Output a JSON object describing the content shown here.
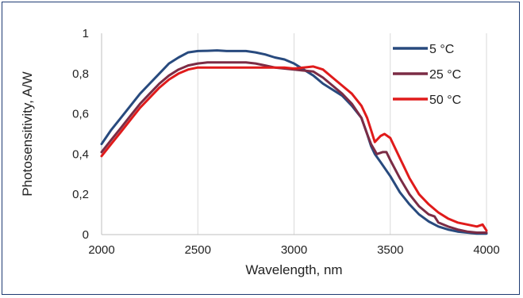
{
  "chart_data": {
    "type": "line",
    "title": "",
    "xlabel": "Wavelength, nm",
    "ylabel": "Photosensitivity, A/W",
    "xlim": [
      2000,
      4000
    ],
    "ylim": [
      0,
      1
    ],
    "x_ticks": [
      2000,
      2500,
      3000,
      3500,
      4000
    ],
    "y_ticks": [
      0,
      0.2,
      0.4,
      0.6,
      0.8,
      1
    ],
    "y_tick_labels": [
      "0",
      "0,2",
      "0,4",
      "0,6",
      "0,8",
      "1"
    ],
    "grid": "vertical",
    "legend_position": "top-right",
    "series": [
      {
        "name": "5 °C",
        "color": "#284a7e",
        "points": [
          [
            2000,
            0.45
          ],
          [
            2050,
            0.52
          ],
          [
            2100,
            0.58
          ],
          [
            2150,
            0.64
          ],
          [
            2200,
            0.7
          ],
          [
            2250,
            0.75
          ],
          [
            2300,
            0.8
          ],
          [
            2350,
            0.85
          ],
          [
            2400,
            0.88
          ],
          [
            2450,
            0.905
          ],
          [
            2500,
            0.912
          ],
          [
            2550,
            0.913
          ],
          [
            2600,
            0.915
          ],
          [
            2650,
            0.912
          ],
          [
            2700,
            0.912
          ],
          [
            2750,
            0.912
          ],
          [
            2800,
            0.905
          ],
          [
            2850,
            0.895
          ],
          [
            2900,
            0.88
          ],
          [
            2950,
            0.87
          ],
          [
            3000,
            0.85
          ],
          [
            3050,
            0.82
          ],
          [
            3100,
            0.79
          ],
          [
            3150,
            0.75
          ],
          [
            3200,
            0.72
          ],
          [
            3250,
            0.69
          ],
          [
            3300,
            0.64
          ],
          [
            3350,
            0.58
          ],
          [
            3380,
            0.5
          ],
          [
            3400,
            0.44
          ],
          [
            3420,
            0.4
          ],
          [
            3450,
            0.36
          ],
          [
            3500,
            0.29
          ],
          [
            3550,
            0.21
          ],
          [
            3600,
            0.15
          ],
          [
            3650,
            0.1
          ],
          [
            3700,
            0.065
          ],
          [
            3750,
            0.04
          ],
          [
            3800,
            0.025
          ],
          [
            3850,
            0.015
          ],
          [
            3900,
            0.01
          ],
          [
            3950,
            0.005
          ],
          [
            4000,
            0.005
          ]
        ]
      },
      {
        "name": "25 °C",
        "color": "#7b2c45",
        "points": [
          [
            2000,
            0.41
          ],
          [
            2050,
            0.47
          ],
          [
            2100,
            0.53
          ],
          [
            2150,
            0.59
          ],
          [
            2200,
            0.65
          ],
          [
            2250,
            0.7
          ],
          [
            2300,
            0.75
          ],
          [
            2350,
            0.79
          ],
          [
            2400,
            0.82
          ],
          [
            2450,
            0.84
          ],
          [
            2500,
            0.85
          ],
          [
            2550,
            0.855
          ],
          [
            2600,
            0.855
          ],
          [
            2650,
            0.855
          ],
          [
            2700,
            0.855
          ],
          [
            2750,
            0.855
          ],
          [
            2800,
            0.85
          ],
          [
            2850,
            0.84
          ],
          [
            2900,
            0.83
          ],
          [
            2950,
            0.825
          ],
          [
            3000,
            0.82
          ],
          [
            3050,
            0.815
          ],
          [
            3100,
            0.81
          ],
          [
            3150,
            0.78
          ],
          [
            3200,
            0.74
          ],
          [
            3250,
            0.7
          ],
          [
            3300,
            0.65
          ],
          [
            3350,
            0.58
          ],
          [
            3380,
            0.5
          ],
          [
            3400,
            0.45
          ],
          [
            3430,
            0.4
          ],
          [
            3460,
            0.41
          ],
          [
            3480,
            0.41
          ],
          [
            3500,
            0.37
          ],
          [
            3550,
            0.28
          ],
          [
            3600,
            0.2
          ],
          [
            3650,
            0.14
          ],
          [
            3700,
            0.1
          ],
          [
            3730,
            0.09
          ],
          [
            3750,
            0.06
          ],
          [
            3800,
            0.04
          ],
          [
            3850,
            0.025
          ],
          [
            3900,
            0.015
          ],
          [
            3950,
            0.01
          ],
          [
            4000,
            0.01
          ]
        ]
      },
      {
        "name": "50 °C",
        "color": "#e01b1b",
        "points": [
          [
            2000,
            0.39
          ],
          [
            2050,
            0.45
          ],
          [
            2100,
            0.51
          ],
          [
            2150,
            0.57
          ],
          [
            2200,
            0.63
          ],
          [
            2250,
            0.68
          ],
          [
            2300,
            0.73
          ],
          [
            2350,
            0.77
          ],
          [
            2400,
            0.8
          ],
          [
            2450,
            0.82
          ],
          [
            2500,
            0.83
          ],
          [
            2550,
            0.83
          ],
          [
            2600,
            0.83
          ],
          [
            2650,
            0.83
          ],
          [
            2700,
            0.83
          ],
          [
            2750,
            0.83
          ],
          [
            2800,
            0.83
          ],
          [
            2850,
            0.83
          ],
          [
            2900,
            0.83
          ],
          [
            2950,
            0.83
          ],
          [
            3000,
            0.825
          ],
          [
            3050,
            0.83
          ],
          [
            3100,
            0.835
          ],
          [
            3150,
            0.82
          ],
          [
            3200,
            0.78
          ],
          [
            3250,
            0.74
          ],
          [
            3300,
            0.7
          ],
          [
            3350,
            0.64
          ],
          [
            3380,
            0.58
          ],
          [
            3400,
            0.52
          ],
          [
            3420,
            0.46
          ],
          [
            3450,
            0.49
          ],
          [
            3470,
            0.5
          ],
          [
            3500,
            0.48
          ],
          [
            3530,
            0.42
          ],
          [
            3560,
            0.36
          ],
          [
            3600,
            0.28
          ],
          [
            3650,
            0.2
          ],
          [
            3700,
            0.15
          ],
          [
            3750,
            0.11
          ],
          [
            3800,
            0.08
          ],
          [
            3850,
            0.06
          ],
          [
            3900,
            0.05
          ],
          [
            3950,
            0.04
          ],
          [
            3980,
            0.05
          ],
          [
            4000,
            0.02
          ]
        ]
      }
    ]
  }
}
